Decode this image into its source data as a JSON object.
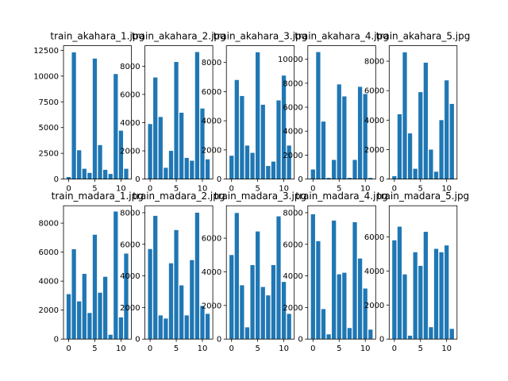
{
  "chart_data": [
    {
      "type": "bar",
      "title": "train_akahara_1.jpg",
      "categories": [
        0,
        1,
        2,
        3,
        4,
        5,
        6,
        7,
        8,
        9,
        10,
        11
      ],
      "values": [
        200,
        12300,
        2800,
        1000,
        600,
        11700,
        3300,
        900,
        500,
        10200,
        4700,
        1000
      ],
      "color": "#1f77b4",
      "xlim": [
        -0.99,
        11.99
      ],
      "xticks": [
        0,
        5,
        10
      ],
      "ylim": [
        0,
        12950
      ],
      "yticks": [
        0,
        2500,
        5000,
        7500,
        10000,
        12500
      ]
    },
    {
      "type": "bar",
      "title": "train_akahara_2.jpg",
      "categories": [
        0,
        1,
        2,
        3,
        4,
        5,
        6,
        7,
        8,
        9,
        10,
        11
      ],
      "values": [
        3900,
        7200,
        4400,
        800,
        2000,
        8300,
        4700,
        1500,
        1300,
        9000,
        5000,
        1400
      ],
      "color": "#1f77b4",
      "xlim": [
        -0.99,
        11.99
      ],
      "xticks": [
        0,
        5,
        10
      ],
      "ylim": [
        0,
        9450
      ],
      "yticks": [
        0,
        2000,
        4000,
        6000,
        8000
      ]
    },
    {
      "type": "bar",
      "title": "train_akahara_3.jpg",
      "categories": [
        0,
        1,
        2,
        3,
        4,
        5,
        6,
        7,
        8,
        9,
        10,
        11
      ],
      "values": [
        1600,
        6800,
        5700,
        2300,
        1800,
        8700,
        5100,
        900,
        1200,
        5400,
        7100,
        2300
      ],
      "color": "#1f77b4",
      "xlim": [
        -0.99,
        11.99
      ],
      "xticks": [
        0,
        5,
        10
      ],
      "ylim": [
        0,
        9150
      ],
      "yticks": [
        0,
        2000,
        4000,
        6000,
        8000
      ]
    },
    {
      "type": "bar",
      "title": "train_akahara_4.jpg",
      "categories": [
        0,
        1,
        2,
        3,
        4,
        5,
        6,
        7,
        8,
        9,
        10,
        11
      ],
      "values": [
        800,
        10600,
        4800,
        100,
        1600,
        7900,
        6900,
        100,
        1600,
        7700,
        7100,
        100
      ],
      "color": "#1f77b4",
      "xlim": [
        -0.99,
        11.99
      ],
      "xticks": [
        0,
        5,
        10
      ],
      "ylim": [
        0,
        11130
      ],
      "yticks": [
        0,
        2000,
        4000,
        6000,
        8000,
        10000
      ]
    },
    {
      "type": "bar",
      "title": "train_akahara_5.jpg",
      "categories": [
        0,
        1,
        2,
        3,
        4,
        5,
        6,
        7,
        8,
        9,
        10,
        11
      ],
      "values": [
        200,
        4400,
        8600,
        3100,
        700,
        5900,
        7900,
        2000,
        500,
        4000,
        6700,
        5100
      ],
      "color": "#1f77b4",
      "xlim": [
        -0.99,
        11.99
      ],
      "xticks": [
        0,
        5,
        10
      ],
      "ylim": [
        0,
        9050
      ],
      "yticks": [
        0,
        2000,
        4000,
        6000,
        8000
      ]
    },
    {
      "type": "bar",
      "title": "train_madara_1.jpg",
      "categories": [
        0,
        1,
        2,
        3,
        4,
        5,
        6,
        7,
        8,
        9,
        10,
        11
      ],
      "values": [
        3100,
        6200,
        2600,
        4500,
        1800,
        7200,
        3200,
        4300,
        300,
        8800,
        1500,
        5900
      ],
      "color": "#1f77b4",
      "xlim": [
        -0.99,
        11.99
      ],
      "xticks": [
        0,
        5,
        10
      ],
      "ylim": [
        0,
        9200
      ],
      "yticks": [
        0,
        2000,
        4000,
        6000,
        8000
      ]
    },
    {
      "type": "bar",
      "title": "train_madara_2.jpg",
      "categories": [
        0,
        1,
        2,
        3,
        4,
        5,
        6,
        7,
        8,
        9,
        10,
        11
      ],
      "values": [
        5700,
        7800,
        1500,
        1300,
        4800,
        6900,
        3400,
        1500,
        5000,
        8000,
        2100,
        1600
      ],
      "color": "#1f77b4",
      "xlim": [
        -0.99,
        11.99
      ],
      "xticks": [
        0,
        5,
        10
      ],
      "ylim": [
        0,
        8440
      ],
      "yticks": [
        0,
        2000,
        4000,
        6000,
        8000
      ]
    },
    {
      "type": "bar",
      "title": "train_madara_3.jpg",
      "categories": [
        0,
        1,
        2,
        3,
        4,
        5,
        6,
        7,
        8,
        9,
        10,
        11
      ],
      "values": [
        5000,
        7500,
        3200,
        700,
        4400,
        6400,
        3100,
        2600,
        4400,
        7300,
        3400,
        1500
      ],
      "color": "#1f77b4",
      "xlim": [
        -0.99,
        11.99
      ],
      "xticks": [
        0,
        5,
        10
      ],
      "ylim": [
        0,
        7930
      ],
      "yticks": [
        0,
        2000,
        4000,
        6000
      ]
    },
    {
      "type": "bar",
      "title": "train_madara_4.jpg",
      "categories": [
        0,
        1,
        2,
        3,
        4,
        5,
        6,
        7,
        8,
        9,
        10,
        11
      ],
      "values": [
        7900,
        6200,
        1900,
        300,
        7500,
        4100,
        4200,
        700,
        7400,
        5100,
        3200,
        600
      ],
      "color": "#1f77b4",
      "xlim": [
        -0.99,
        11.99
      ],
      "xticks": [
        0,
        5,
        10
      ],
      "ylim": [
        0,
        8440
      ],
      "yticks": [
        0,
        2000,
        4000,
        6000,
        8000
      ]
    },
    {
      "type": "bar",
      "title": "train_madara_5.jpg",
      "categories": [
        0,
        1,
        2,
        3,
        4,
        5,
        6,
        7,
        8,
        9,
        10,
        11
      ],
      "values": [
        5800,
        6600,
        3800,
        200,
        5100,
        4300,
        6300,
        700,
        5300,
        5100,
        5500,
        600
      ],
      "color": "#1f77b4",
      "xlim": [
        -0.99,
        11.99
      ],
      "xticks": [
        0,
        5,
        10
      ],
      "ylim": [
        0,
        7830
      ],
      "yticks": [
        0,
        2000,
        4000,
        6000
      ]
    }
  ]
}
